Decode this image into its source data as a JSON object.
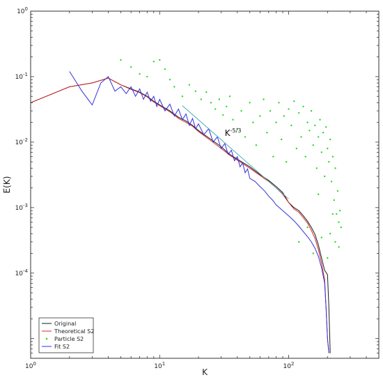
{
  "chart_data": {
    "type": "line",
    "x_scale": "log",
    "y_scale": "log",
    "xlim": [
      1,
      500
    ],
    "ylim": [
      5e-06,
      1
    ],
    "xlabel": "K",
    "ylabel": "E(K)",
    "grid": false,
    "legend_position": "bottom-left",
    "x_ticks": [
      {
        "base": "10",
        "exp": "0"
      },
      {
        "base": "10",
        "exp": "1"
      },
      {
        "base": "10",
        "exp": "2"
      }
    ],
    "y_ticks": [
      {
        "base": "10",
        "exp": "0"
      },
      {
        "base": "10",
        "exp": "-1"
      },
      {
        "base": "10",
        "exp": "-2"
      },
      {
        "base": "10",
        "exp": "-3"
      },
      {
        "base": "10",
        "exp": "-4"
      }
    ],
    "annotation": {
      "base": "K",
      "exp": "-5/3",
      "k": 32,
      "e": 0.0125
    },
    "colors": {
      "original": "#1a1a1a",
      "theoretical": "#d42828",
      "particle": "#22dd22",
      "fit": "#3030e0",
      "reference": "#40a8b8"
    },
    "series": [
      {
        "name": "Original",
        "style": "line",
        "points": [
          [
            1,
            0.04
          ],
          [
            2,
            0.07
          ],
          [
            3,
            0.08
          ],
          [
            4,
            0.095
          ],
          [
            5,
            0.075
          ],
          [
            6,
            0.065
          ],
          [
            7,
            0.058
          ],
          [
            8,
            0.05
          ],
          [
            9,
            0.042
          ],
          [
            10,
            0.037
          ],
          [
            12,
            0.03
          ],
          [
            14,
            0.024
          ],
          [
            16,
            0.021
          ],
          [
            18,
            0.018
          ],
          [
            20,
            0.015
          ],
          [
            25,
            0.011
          ],
          [
            30,
            0.0085
          ],
          [
            35,
            0.0065
          ],
          [
            40,
            0.0055
          ],
          [
            50,
            0.0042
          ],
          [
            60,
            0.0032
          ],
          [
            70,
            0.0026
          ],
          [
            80,
            0.0021
          ],
          [
            90,
            0.0017
          ],
          [
            100,
            0.0012
          ],
          [
            110,
            0.001
          ],
          [
            120,
            0.0009
          ],
          [
            130,
            0.00075
          ],
          [
            140,
            0.00062
          ],
          [
            150,
            0.0005
          ],
          [
            160,
            0.00039
          ],
          [
            170,
            0.00027
          ],
          [
            180,
            0.00017
          ],
          [
            190,
            0.00011
          ],
          [
            200,
            9.5e-05
          ],
          [
            205,
            3e-05
          ],
          [
            210,
            6e-06
          ]
        ]
      },
      {
        "name": "Theoretical S2",
        "style": "line",
        "points": [
          [
            1,
            0.04
          ],
          [
            2,
            0.07
          ],
          [
            3,
            0.08
          ],
          [
            4,
            0.095
          ],
          [
            5,
            0.075
          ],
          [
            6,
            0.064
          ],
          [
            7,
            0.057
          ],
          [
            8,
            0.049
          ],
          [
            9,
            0.041
          ],
          [
            10,
            0.036
          ],
          [
            12,
            0.029
          ],
          [
            14,
            0.023
          ],
          [
            16,
            0.02
          ],
          [
            18,
            0.0175
          ],
          [
            20,
            0.0145
          ],
          [
            25,
            0.0105
          ],
          [
            30,
            0.008
          ],
          [
            35,
            0.0063
          ],
          [
            40,
            0.0053
          ],
          [
            50,
            0.004
          ],
          [
            60,
            0.0031
          ],
          [
            70,
            0.0025
          ],
          [
            80,
            0.002
          ],
          [
            90,
            0.0016
          ],
          [
            100,
            0.0012
          ],
          [
            110,
            0.00095
          ],
          [
            120,
            0.00085
          ],
          [
            130,
            0.0007
          ],
          [
            140,
            0.00058
          ],
          [
            150,
            0.00045
          ],
          [
            160,
            0.00034
          ],
          [
            170,
            0.00023
          ],
          [
            180,
            0.00014
          ],
          [
            190,
            8e-05
          ],
          [
            195,
            3e-05
          ],
          [
            200,
            1e-05
          ],
          [
            205,
            6e-06
          ]
        ]
      },
      {
        "name": "Particle S2",
        "style": "points",
        "points": [
          [
            5,
            0.18
          ],
          [
            6,
            0.14
          ],
          [
            7,
            0.11
          ],
          [
            8,
            0.1
          ],
          [
            9,
            0.17
          ],
          [
            10,
            0.18
          ],
          [
            11,
            0.13
          ],
          [
            12,
            0.09
          ],
          [
            13,
            0.07
          ],
          [
            15,
            0.05
          ],
          [
            17,
            0.075
          ],
          [
            19,
            0.06
          ],
          [
            21,
            0.045
          ],
          [
            23,
            0.058
          ],
          [
            25,
            0.04
          ],
          [
            27,
            0.032
          ],
          [
            29,
            0.045
          ],
          [
            31,
            0.026
          ],
          [
            33,
            0.035
          ],
          [
            35,
            0.05
          ],
          [
            37,
            0.022
          ],
          [
            40,
            0.016
          ],
          [
            43,
            0.03
          ],
          [
            46,
            0.012
          ],
          [
            50,
            0.04
          ],
          [
            53,
            0.02
          ],
          [
            56,
            0.009
          ],
          [
            60,
            0.025
          ],
          [
            64,
            0.045
          ],
          [
            68,
            0.014
          ],
          [
            72,
            0.03
          ],
          [
            76,
            0.006
          ],
          [
            80,
            0.02
          ],
          [
            84,
            0.04
          ],
          [
            88,
            0.011
          ],
          [
            92,
            0.025
          ],
          [
            96,
            0.005
          ],
          [
            100,
            0.032
          ],
          [
            105,
            0.018
          ],
          [
            110,
            0.042
          ],
          [
            115,
            0.008
          ],
          [
            120,
            0.028
          ],
          [
            125,
            0.012
          ],
          [
            130,
            0.035
          ],
          [
            135,
            0.006
          ],
          [
            140,
            0.02
          ],
          [
            145,
            0.015
          ],
          [
            150,
            0.03
          ],
          [
            155,
            0.009
          ],
          [
            160,
            0.018
          ],
          [
            165,
            0.004
          ],
          [
            170,
            0.012
          ],
          [
            175,
            0.022
          ],
          [
            180,
            0.007
          ],
          [
            185,
            0.014
          ],
          [
            190,
            0.003
          ],
          [
            195,
            0.017
          ],
          [
            200,
            0.008
          ],
          [
            205,
            0.005
          ],
          [
            210,
            0.011
          ],
          [
            215,
            0.0025
          ],
          [
            220,
            0.006
          ],
          [
            225,
            0.0013
          ],
          [
            230,
            0.004
          ],
          [
            235,
            0.0008
          ],
          [
            240,
            0.0018
          ],
          [
            245,
            0.0006
          ],
          [
            250,
            0.0009
          ],
          [
            255,
            0.0005
          ],
          [
            140,
            0.0005
          ],
          [
            155,
            0.0002
          ],
          [
            180,
            0.00035
          ],
          [
            210,
            0.0004
          ],
          [
            230,
            0.0003
          ],
          [
            245,
            0.00025
          ],
          [
            120,
            0.0003
          ],
          [
            200,
            0.00017
          ],
          [
            220,
            0.0008
          ],
          [
            170,
            0.0016
          ]
        ]
      },
      {
        "name": "Fit S2",
        "style": "line",
        "points": [
          [
            2,
            0.12
          ],
          [
            2.5,
            0.06
          ],
          [
            3,
            0.037
          ],
          [
            3.5,
            0.08
          ],
          [
            4,
            0.1
          ],
          [
            4.5,
            0.06
          ],
          [
            5,
            0.07
          ],
          [
            5.5,
            0.055
          ],
          [
            6,
            0.07
          ],
          [
            6.5,
            0.05
          ],
          [
            7,
            0.065
          ],
          [
            7.5,
            0.045
          ],
          [
            8,
            0.058
          ],
          [
            8.5,
            0.042
          ],
          [
            9,
            0.05
          ],
          [
            9.5,
            0.035
          ],
          [
            10,
            0.045
          ],
          [
            11,
            0.03
          ],
          [
            12,
            0.038
          ],
          [
            13,
            0.025
          ],
          [
            14,
            0.032
          ],
          [
            15,
            0.022
          ],
          [
            16,
            0.027
          ],
          [
            17,
            0.018
          ],
          [
            18,
            0.023
          ],
          [
            19,
            0.016
          ],
          [
            20,
            0.019
          ],
          [
            22,
            0.013
          ],
          [
            24,
            0.016
          ],
          [
            26,
            0.01
          ],
          [
            28,
            0.012
          ],
          [
            30,
            0.008
          ],
          [
            32,
            0.0095
          ],
          [
            34,
            0.0065
          ],
          [
            36,
            0.0075
          ],
          [
            38,
            0.0052
          ],
          [
            40,
            0.006
          ],
          [
            42,
            0.0042
          ],
          [
            44,
            0.0048
          ],
          [
            46,
            0.0034
          ],
          [
            48,
            0.0039
          ],
          [
            50,
            0.0028
          ],
          [
            55,
            0.0025
          ],
          [
            60,
            0.0021
          ],
          [
            65,
            0.0018
          ],
          [
            70,
            0.0015
          ],
          [
            75,
            0.0013
          ],
          [
            80,
            0.0011
          ],
          [
            90,
            0.0009
          ],
          [
            100,
            0.00075
          ],
          [
            110,
            0.00063
          ],
          [
            120,
            0.00052
          ],
          [
            130,
            0.00043
          ],
          [
            140,
            0.00036
          ],
          [
            150,
            0.0003
          ],
          [
            160,
            0.00024
          ],
          [
            170,
            0.00018
          ],
          [
            180,
            0.00012
          ],
          [
            190,
            7e-05
          ],
          [
            195,
            3e-05
          ],
          [
            200,
            1e-05
          ],
          [
            205,
            6e-06
          ]
        ]
      },
      {
        "name": "",
        "style": "reference",
        "points": [
          [
            15,
            0.036
          ],
          [
            100,
            0.00136
          ]
        ]
      }
    ]
  }
}
